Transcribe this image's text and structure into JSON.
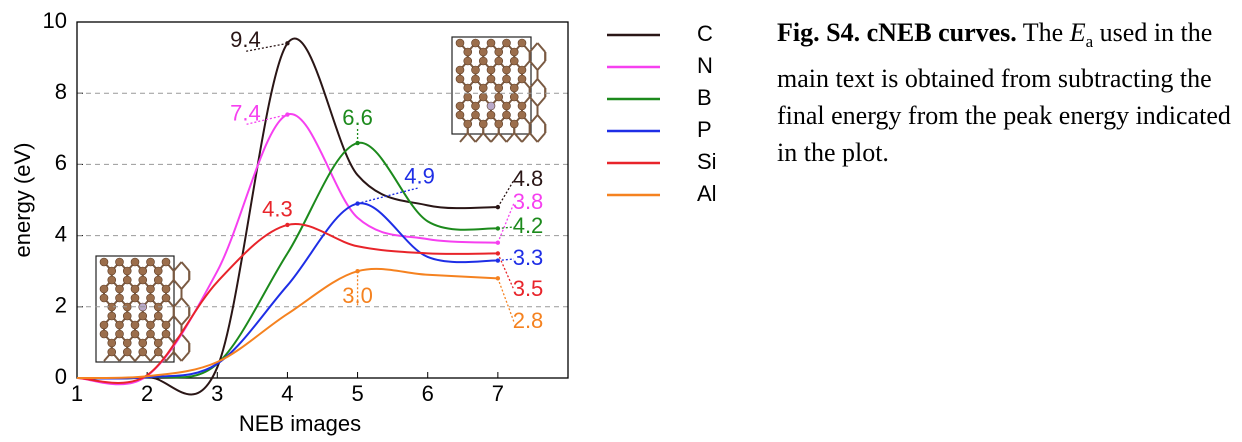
{
  "chart_data": {
    "type": "line",
    "x_label": "NEB images",
    "y_label": "energy (eV)",
    "x": [
      1,
      2,
      3,
      4,
      5,
      6,
      7
    ],
    "xlim": [
      1,
      8
    ],
    "xticks": [
      1,
      2,
      3,
      4,
      5,
      6,
      7
    ],
    "ylim": [
      0,
      10
    ],
    "yticks": [
      0,
      2,
      4,
      6,
      8,
      10
    ],
    "grid": true,
    "legend": "outside-right",
    "series": [
      {
        "name": "C",
        "color": "#2a1616",
        "values": [
          0,
          0.02,
          0.3,
          9.4,
          5.7,
          4.85,
          4.8
        ],
        "value_labels": [
          null,
          null,
          null,
          "9.4",
          null,
          null,
          "4.8"
        ]
      },
      {
        "name": "N",
        "color": "#f640f0",
        "values": [
          0,
          0.06,
          3.0,
          7.4,
          4.5,
          3.9,
          3.8
        ],
        "value_labels": [
          null,
          null,
          null,
          "7.4",
          null,
          null,
          "3.8"
        ]
      },
      {
        "name": "B",
        "color": "#1c8a1c",
        "values": [
          0,
          0.02,
          0.4,
          3.5,
          6.6,
          4.4,
          4.2
        ],
        "value_labels": [
          null,
          null,
          null,
          null,
          "6.6",
          null,
          "4.2"
        ]
      },
      {
        "name": "P",
        "color": "#1e2ee6",
        "values": [
          0,
          0.02,
          0.4,
          2.6,
          4.9,
          3.4,
          3.3
        ],
        "value_labels": [
          null,
          null,
          null,
          null,
          "4.9",
          null,
          "3.3"
        ]
      },
      {
        "name": "Si",
        "color": "#e8242a",
        "values": [
          0,
          0.08,
          2.7,
          4.3,
          3.7,
          3.5,
          3.5
        ],
        "value_labels": [
          null,
          null,
          null,
          "4.3",
          null,
          null,
          "3.5"
        ]
      },
      {
        "name": "Al",
        "color": "#f58220",
        "values": [
          0,
          0.05,
          0.45,
          1.8,
          3.0,
          2.9,
          2.8
        ],
        "value_labels": [
          null,
          null,
          null,
          null,
          "3.0",
          null,
          "2.8"
        ]
      }
    ]
  },
  "caption": {
    "label": "Fig. S4. cNEB curves.",
    "before": " The ",
    "symbol": "E",
    "subscript": "a",
    "after": " used in the main text is obtained from subtracting the final energy from the peak energy indicated in the plot."
  }
}
